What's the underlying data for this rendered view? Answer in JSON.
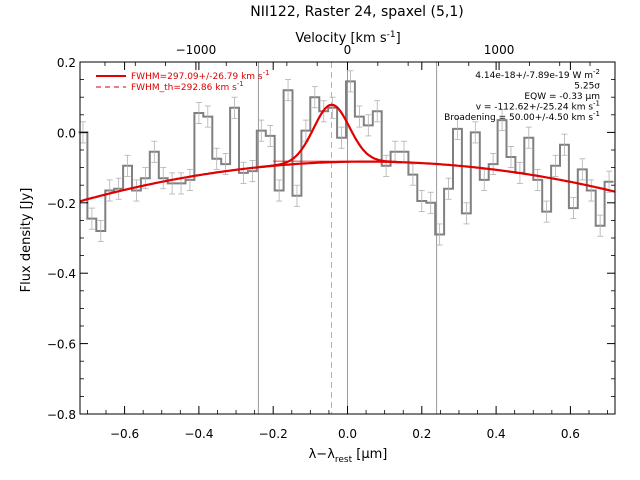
{
  "chart_data": {
    "type": "line",
    "title": "NII122, Raster 24, spaxel (5,1)",
    "xlabel": "λ−λ_rest [μm]",
    "xlabel_parts": {
      "main": "λ−λ",
      "sub": "rest",
      "unit": " [μm]"
    },
    "ylabel": "Flux density [Jy]",
    "top_axis_label": "Velocity [km s⁻¹]",
    "top_axis_parts": {
      "main": "Velocity [km s",
      "sup": "-1",
      "end": "]"
    },
    "xlim": [
      -0.72,
      0.72
    ],
    "ylim": [
      -0.8,
      0.2
    ],
    "x_ticks": [
      -0.6,
      -0.4,
      -0.2,
      0.0,
      0.2,
      0.4,
      0.6
    ],
    "x_tick_labels": [
      "−0.6",
      "−0.4",
      "−0.2",
      "0.0",
      "0.2",
      "0.4",
      "0.6"
    ],
    "y_ticks": [
      -0.8,
      -0.6,
      -0.4,
      -0.2,
      0.0,
      0.2
    ],
    "y_tick_labels": [
      "−0.8",
      "−0.6",
      "−0.4",
      "−0.2",
      "0.0",
      "0.2"
    ],
    "top_ticks": [
      -1000,
      0,
      1000
    ],
    "top_tick_labels": [
      "−1000",
      "0",
      "1000"
    ],
    "top_tick_positions_x": [
      -0.408,
      0.0,
      0.408
    ],
    "spectrum": {
      "name": "data",
      "style": "step",
      "color": "#808080",
      "x": [
        -0.712,
        -0.688,
        -0.664,
        -0.64,
        -0.616,
        -0.592,
        -0.568,
        -0.544,
        -0.52,
        -0.496,
        -0.472,
        -0.448,
        -0.424,
        -0.4,
        -0.376,
        -0.352,
        -0.328,
        -0.304,
        -0.28,
        -0.256,
        -0.232,
        -0.208,
        -0.184,
        -0.16,
        -0.136,
        -0.112,
        -0.088,
        -0.064,
        -0.04,
        -0.016,
        0.008,
        0.032,
        0.056,
        0.08,
        0.104,
        0.128,
        0.152,
        0.176,
        0.2,
        0.224,
        0.248,
        0.272,
        0.296,
        0.32,
        0.344,
        0.368,
        0.392,
        0.416,
        0.44,
        0.464,
        0.488,
        0.512,
        0.536,
        0.56,
        0.584,
        0.608,
        0.632,
        0.656,
        0.68,
        0.704
      ],
      "y": [
        0.0,
        -0.245,
        -0.28,
        -0.165,
        -0.16,
        -0.095,
        -0.165,
        -0.13,
        -0.055,
        -0.13,
        -0.145,
        -0.145,
        -0.135,
        0.055,
        0.045,
        -0.075,
        -0.09,
        0.07,
        -0.115,
        -0.11,
        0.005,
        -0.01,
        -0.165,
        0.12,
        -0.18,
        0.005,
        0.1,
        0.06,
        0.07,
        -0.015,
        0.145,
        0.045,
        0.02,
        0.06,
        -0.095,
        -0.055,
        -0.055,
        -0.12,
        -0.195,
        -0.2,
        -0.29,
        -0.16,
        0.01,
        -0.23,
        0.0,
        -0.135,
        -0.09,
        0.035,
        -0.07,
        -0.115,
        -0.015,
        -0.135,
        -0.225,
        -0.095,
        -0.035,
        -0.215,
        -0.105,
        -0.165,
        -0.265,
        -0.14
      ],
      "err": 0.03
    },
    "fit": {
      "name": "fit",
      "color": "#e00000",
      "baseline_center": 0.05,
      "baseline_peak": -0.083,
      "baseline_curv": 0.19,
      "gauss_center": -0.043,
      "gauss_sigma": 0.048,
      "gauss_amp": 0.163
    },
    "vertical_lines": {
      "solid": [
        -0.24,
        0.0,
        0.24
      ],
      "dashed": [
        -0.043
      ]
    },
    "legend": {
      "placement": "top-left",
      "entries": [
        {
          "label": "FWHM=297.09+/−26.79 km s⁻¹",
          "parts": {
            "main": "FWHM=297.09+/-26.79 km s",
            "sup": "-1"
          },
          "style": "solid"
        },
        {
          "label": "FWHM_th=292.86 km s⁻¹",
          "parts": {
            "main": "FWHM_th=292.86 km s",
            "sup": "-1"
          },
          "style": "dashed"
        }
      ]
    },
    "annotations": {
      "placement": "top-right",
      "lines": [
        {
          "main": "4.14e-18+/-7.89e-19 W m",
          "sup": "-2"
        },
        {
          "main": "5.25σ",
          "sup": ""
        },
        {
          "main": "EQW = -0.33 μm",
          "sup": ""
        },
        {
          "main": "v = -112.62+/-25.24 km s",
          "sup": "-1"
        },
        {
          "main": "Broadening = 50.00+/-4.50 km s",
          "sup": "-1"
        }
      ]
    }
  }
}
